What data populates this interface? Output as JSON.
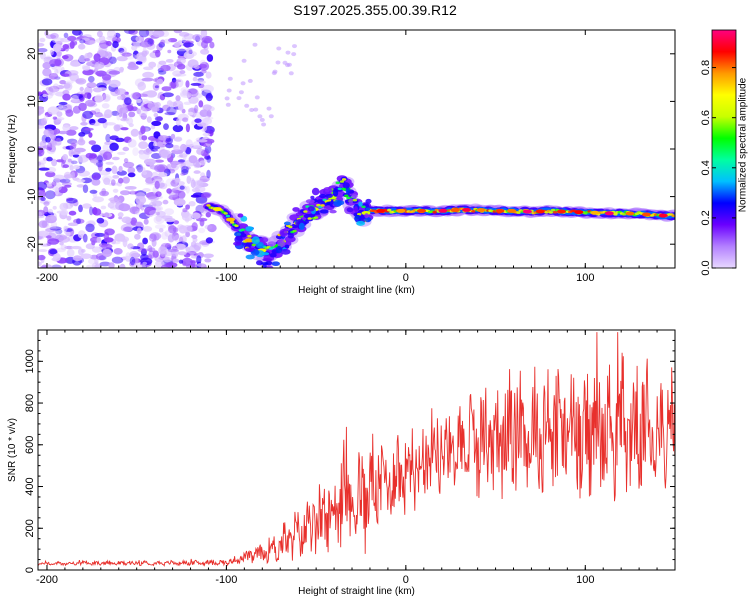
{
  "title": "S197.2025.355.00.39.R12",
  "chart_data": [
    {
      "type": "heatmap",
      "title": "",
      "xlabel": "Height of straight line (km)",
      "ylabel": "Frequency (Hz)",
      "xlim": [
        -205,
        150
      ],
      "ylim": [
        -25,
        25
      ],
      "xticks": [
        -200,
        -100,
        0,
        100
      ],
      "yticks": [
        -20,
        -10,
        0,
        10,
        20
      ],
      "colorbar": {
        "label": "Normalized spectral amplitude",
        "range": [
          0.0,
          0.95
        ],
        "ticks": [
          "0.0",
          "0.2",
          "0.4",
          "0.6",
          "0.8"
        ],
        "stops": [
          "#e8d8ff",
          "#b380ff",
          "#6a00ff",
          "#0000ff",
          "#00c0ff",
          "#00ffa0",
          "#00ff00",
          "#c8ff00",
          "#ffff00",
          "#ff9900",
          "#ff0000",
          "#ff0080"
        ]
      },
      "ridge": {
        "x": [
          -110,
          -102,
          -95,
          -88,
          -82,
          -76,
          -70,
          -64,
          -58,
          -52,
          -46,
          -40,
          -35,
          -30,
          -25,
          -20,
          -15,
          -10,
          -5,
          0,
          10,
          20,
          30,
          40,
          50,
          60,
          70,
          80,
          90,
          100,
          110,
          120,
          130,
          140,
          150
        ],
        "y": [
          -12,
          -13,
          -16,
          -19,
          -21,
          -22,
          -20,
          -17,
          -15,
          -13,
          -11,
          -10,
          -7,
          -11,
          -14,
          -13,
          -13,
          -13,
          -13,
          -13,
          -13,
          -13,
          -12.8,
          -12.8,
          -13,
          -13,
          -13.2,
          -13,
          -13.2,
          -13.3,
          -13.5,
          -13.5,
          -13.6,
          -14,
          -14
        ]
      }
    },
    {
      "type": "line",
      "title": "",
      "xlabel": "Height of straight line (km)",
      "ylabel": "SNR (10 * v/v)",
      "xlim": [
        -205,
        150
      ],
      "ylim": [
        0,
        1150
      ],
      "xticks": [
        -200,
        -100,
        0,
        100
      ],
      "yticks": [
        0,
        200,
        400,
        600,
        800,
        1000
      ],
      "color": "#e8302c",
      "envelope": {
        "x": [
          -205,
          -100,
          -90,
          -80,
          -70,
          -60,
          -50,
          -40,
          -30,
          -20,
          -10,
          0,
          10,
          20,
          30,
          40,
          50,
          60,
          70,
          80,
          90,
          100,
          110,
          120,
          130,
          140,
          150
        ],
        "base": [
          30,
          35,
          60,
          80,
          120,
          170,
          220,
          280,
          330,
          380,
          430,
          490,
          540,
          580,
          600,
          620,
          640,
          650,
          660,
          665,
          665,
          670,
          670,
          675,
          675,
          680,
          680
        ],
        "amp": [
          8,
          12,
          25,
          45,
          80,
          120,
          160,
          200,
          230,
          250,
          220,
          200,
          200,
          210,
          230,
          250,
          270,
          290,
          310,
          330,
          340,
          330,
          320,
          320,
          300,
          280,
          250
        ]
      }
    }
  ]
}
